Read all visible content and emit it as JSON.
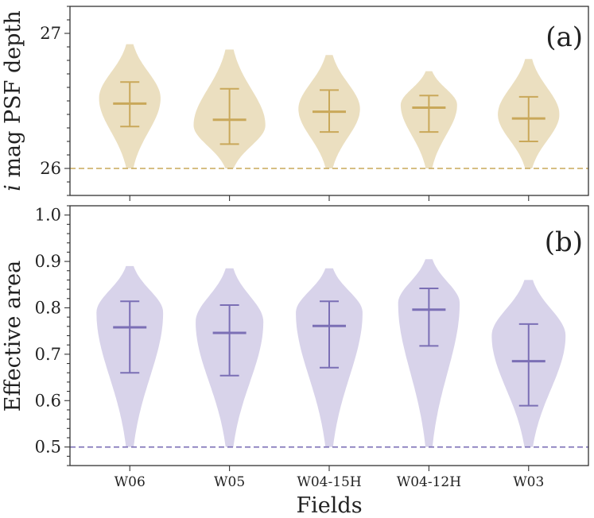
{
  "chart_data": {
    "type": "violin",
    "xlabel": "Fields",
    "categories": [
      "W06",
      "W05",
      "W04-15H",
      "W04-12H",
      "W03"
    ],
    "panels": [
      {
        "id": "a",
        "tag": "(a)",
        "ylabel_prefix": "i",
        "ylabel_rest": " mag PSF depth",
        "ylim": [
          25.8,
          27.2
        ],
        "yticks": [
          26,
          27
        ],
        "ytick_labels": [
          "26",
          "27"
        ],
        "threshold": 26.0,
        "color": "#c9a85a",
        "fill": "#ebdfc0",
        "violins": [
          {
            "category": "W06",
            "min": 26.0,
            "max": 26.92,
            "median": 26.48,
            "q_low": 26.31,
            "q_high": 26.64,
            "mode": 26.52,
            "peak_width": 0.6
          },
          {
            "category": "W05",
            "min": 26.0,
            "max": 26.88,
            "median": 26.36,
            "q_low": 26.18,
            "q_high": 26.59,
            "mode": 26.32,
            "peak_width": 0.7
          },
          {
            "category": "W04-15H",
            "min": 26.0,
            "max": 26.84,
            "median": 26.42,
            "q_low": 26.27,
            "q_high": 26.58,
            "mode": 26.44,
            "peak_width": 0.6
          },
          {
            "category": "W04-12H",
            "min": 26.0,
            "max": 26.72,
            "median": 26.45,
            "q_low": 26.27,
            "q_high": 26.54,
            "mode": 26.47,
            "peak_width": 0.55
          },
          {
            "category": "W03",
            "min": 26.0,
            "max": 26.81,
            "median": 26.37,
            "q_low": 26.2,
            "q_high": 26.53,
            "mode": 26.4,
            "peak_width": 0.6
          }
        ]
      },
      {
        "id": "b",
        "tag": "(b)",
        "ylabel": "Effective area",
        "ylim": [
          0.46,
          1.02
        ],
        "yticks": [
          0.5,
          0.6,
          0.7,
          0.8,
          0.9,
          1.0
        ],
        "ytick_labels": [
          "0.5",
          "0.6",
          "0.7",
          "0.8",
          "0.9",
          "1.0"
        ],
        "threshold": 0.5,
        "color": "#7b6fb5",
        "fill": "#d8d3ea",
        "violins": [
          {
            "category": "W06",
            "min": 0.5,
            "max": 0.89,
            "median": 0.758,
            "q_low": 0.66,
            "q_high": 0.814,
            "mode": 0.79,
            "peak_width": 0.65
          },
          {
            "category": "W05",
            "min": 0.5,
            "max": 0.885,
            "median": 0.746,
            "q_low": 0.654,
            "q_high": 0.806,
            "mode": 0.77,
            "peak_width": 0.66
          },
          {
            "category": "W04-15H",
            "min": 0.5,
            "max": 0.885,
            "median": 0.761,
            "q_low": 0.671,
            "q_high": 0.814,
            "mode": 0.79,
            "peak_width": 0.65
          },
          {
            "category": "W04-12H",
            "min": 0.5,
            "max": 0.905,
            "median": 0.796,
            "q_low": 0.718,
            "q_high": 0.842,
            "mode": 0.81,
            "peak_width": 0.6
          },
          {
            "category": "W03",
            "min": 0.5,
            "max": 0.86,
            "median": 0.685,
            "q_low": 0.589,
            "q_high": 0.765,
            "mode": 0.74,
            "peak_width": 0.72
          }
        ]
      }
    ]
  }
}
